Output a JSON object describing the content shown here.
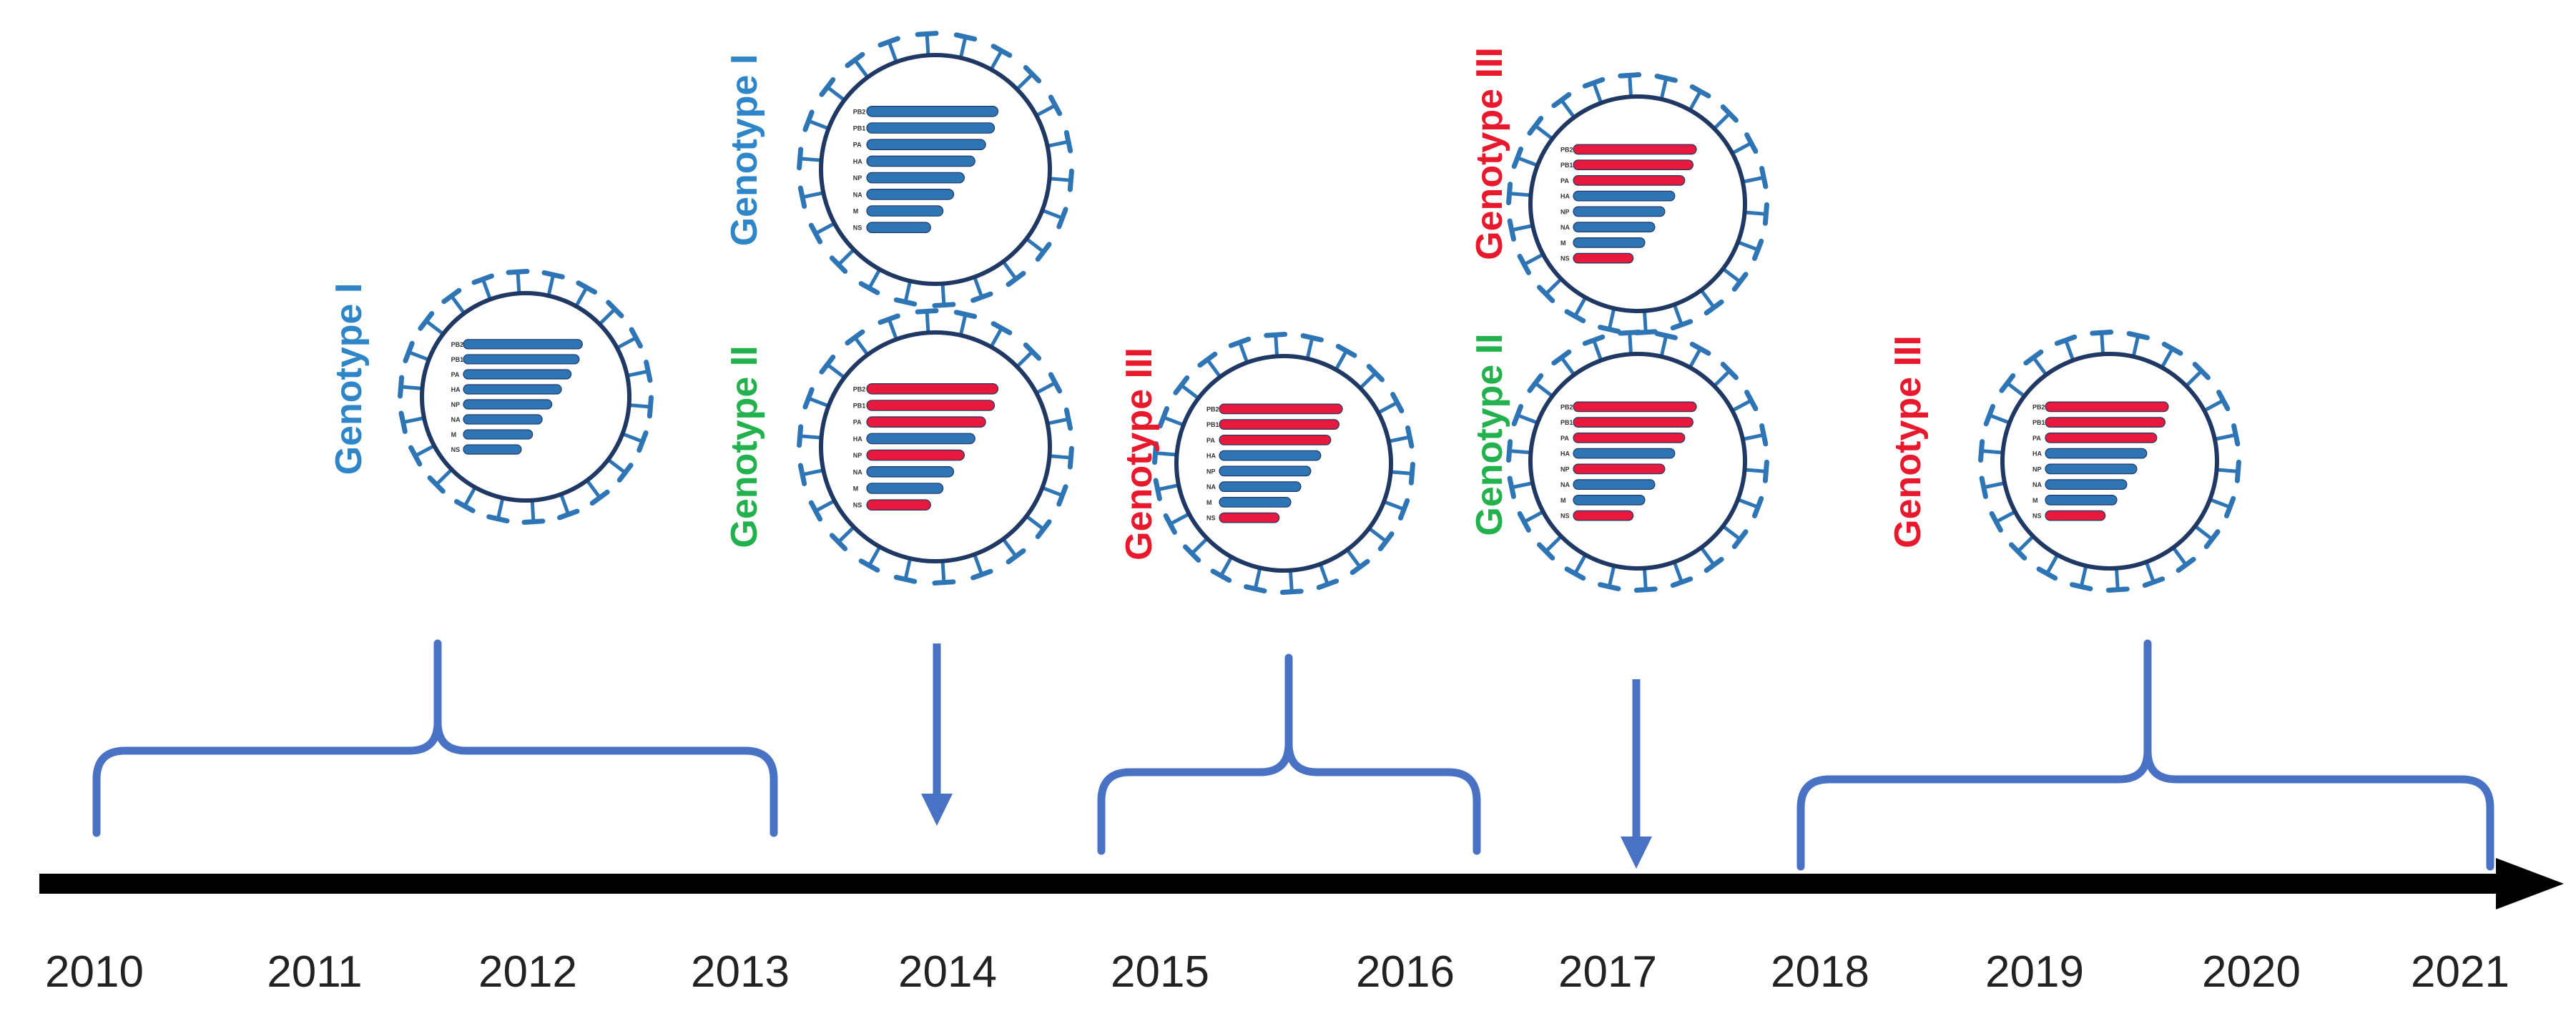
{
  "diagram": {
    "years": [
      "2010",
      "2011",
      "2012",
      "2013",
      "2014",
      "2015",
      "2016",
      "2017",
      "2018",
      "2019",
      "2020",
      "2021"
    ],
    "segments": [
      "PB2",
      "PB1",
      "PA",
      "HA",
      "NP",
      "NA",
      "M",
      "NS"
    ],
    "colors": {
      "timeline": "#000000",
      "bracket": "#4a72c4",
      "virus_outline": "#1f3864",
      "spike": "#2e75b6",
      "genotype_I": "#2e86c8",
      "genotype_II": "#22b14c",
      "genotype_III": "#e8192c",
      "segment_blue": "#2e75b6",
      "segment_red": "#e8193c"
    },
    "virions": [
      {
        "id": "g1-2011-2013",
        "label": "Genotype I",
        "genotype": "I",
        "segment_colors": [
          "blue",
          "blue",
          "blue",
          "blue",
          "blue",
          "blue",
          "blue",
          "blue"
        ]
      },
      {
        "id": "g1-2014",
        "label": "Genotype I",
        "genotype": "I",
        "segment_colors": [
          "blue",
          "blue",
          "blue",
          "blue",
          "blue",
          "blue",
          "blue",
          "blue"
        ]
      },
      {
        "id": "g2-2014",
        "label": "Genotype II",
        "genotype": "II",
        "segment_colors": [
          "red",
          "red",
          "red",
          "blue",
          "red",
          "blue",
          "blue",
          "red"
        ]
      },
      {
        "id": "g3-2015-2016",
        "label": "Genotype III",
        "genotype": "III",
        "segment_colors": [
          "red",
          "red",
          "red",
          "blue",
          "blue",
          "blue",
          "blue",
          "red"
        ]
      },
      {
        "id": "g3-2017",
        "label": "Genotype III",
        "genotype": "III",
        "segment_colors": [
          "red",
          "red",
          "red",
          "blue",
          "blue",
          "blue",
          "blue",
          "red"
        ]
      },
      {
        "id": "g2-2017",
        "label": "Genotype II",
        "genotype": "II",
        "segment_colors": [
          "red",
          "red",
          "red",
          "blue",
          "red",
          "blue",
          "blue",
          "red"
        ]
      },
      {
        "id": "g3-2018-2021",
        "label": "Genotype III",
        "genotype": "III",
        "segment_colors": [
          "red",
          "red",
          "red",
          "blue",
          "blue",
          "blue",
          "blue",
          "red"
        ]
      }
    ],
    "markers": [
      {
        "id": "period-2010-2013",
        "kind": "bracket"
      },
      {
        "id": "year-2014",
        "kind": "arrow"
      },
      {
        "id": "period-2015-2016",
        "kind": "bracket"
      },
      {
        "id": "year-2017",
        "kind": "arrow"
      },
      {
        "id": "period-2018-2021",
        "kind": "bracket"
      }
    ]
  }
}
